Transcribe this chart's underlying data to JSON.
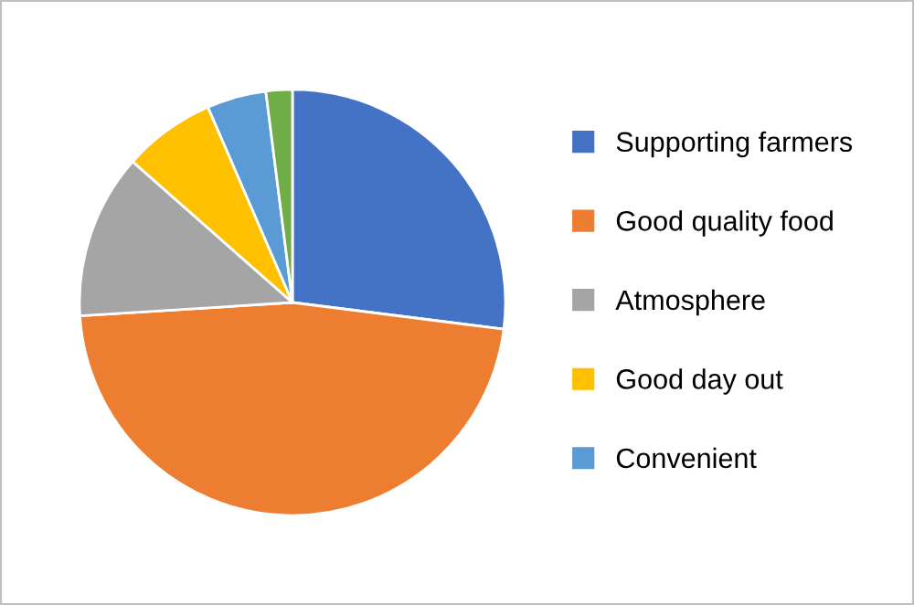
{
  "chart_data": {
    "type": "pie",
    "categories": [
      "Supporting farmers",
      "Good quality food",
      "Atmosphere",
      "Good day out",
      "Convenient",
      null
    ],
    "values": [
      27,
      47,
      12.5,
      7,
      4.5,
      2
    ],
    "colors": [
      "#4472c4",
      "#ed7d31",
      "#a5a5a5",
      "#ffc000",
      "#5b9bd5",
      "#70ad47"
    ],
    "legend": "right"
  }
}
